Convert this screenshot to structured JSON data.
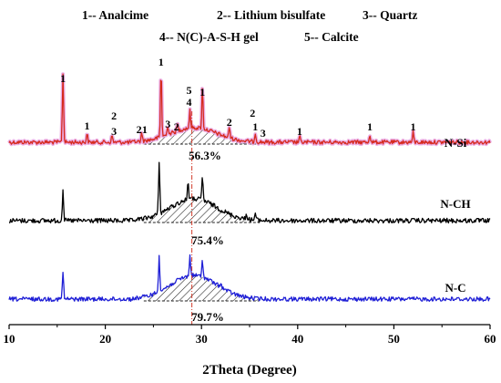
{
  "chart_data": {
    "type": "line",
    "title": "",
    "xlabel": "2Theta (Degree)",
    "ylabel": "",
    "xlim": [
      10,
      60
    ],
    "x_ticks": [
      10,
      20,
      30,
      40,
      50,
      60
    ],
    "legend": [
      "1-- Analcime",
      "2-- Lithium bisulfate",
      "3-- Quartz",
      "4-- N(C)-A-S-H gel",
      "5-- Calcite"
    ],
    "reference_line_x": 29.0,
    "series": [
      {
        "name": "N-Si",
        "color": "#d62a1e",
        "glow": "#e8a0e0",
        "amorphous_hump": {
          "x_start": 24,
          "x_end": 36,
          "percent_label": "56.3%"
        },
        "peaks": [
          {
            "x": 15.6,
            "h": 1.0
          },
          {
            "x": 18.1,
            "h": 0.13
          },
          {
            "x": 20.7,
            "h": 0.1
          },
          {
            "x": 23.8,
            "h": 0.12
          },
          {
            "x": 25.8,
            "h": 1.0
          },
          {
            "x": 26.5,
            "h": 0.14
          },
          {
            "x": 27.5,
            "h": 0.1
          },
          {
            "x": 28.8,
            "h": 0.25
          },
          {
            "x": 30.1,
            "h": 0.6
          },
          {
            "x": 32.9,
            "h": 0.16
          },
          {
            "x": 35.6,
            "h": 0.14
          },
          {
            "x": 40.2,
            "h": 0.08
          },
          {
            "x": 47.5,
            "h": 0.12
          },
          {
            "x": 52.0,
            "h": 0.14
          }
        ],
        "peak_labels": [
          {
            "x": 15.6,
            "text": "1"
          },
          {
            "x": 18.1,
            "text": "1"
          },
          {
            "x": 20.9,
            "text": "2"
          },
          {
            "x": 20.9,
            "text": "3"
          },
          {
            "x": 23.5,
            "text": "2"
          },
          {
            "x": 24.1,
            "text": "1"
          },
          {
            "x": 25.8,
            "text": "1"
          },
          {
            "x": 26.5,
            "text": "3"
          },
          {
            "x": 27.4,
            "text": "2"
          },
          {
            "x": 28.8,
            "text": "5"
          },
          {
            "x": 28.8,
            "text": "4"
          },
          {
            "x": 30.1,
            "text": "1"
          },
          {
            "x": 32.9,
            "text": "2"
          },
          {
            "x": 35.4,
            "text": "2"
          },
          {
            "x": 35.5,
            "text": "1"
          },
          {
            "x": 36.4,
            "text": "3"
          },
          {
            "x": 40.2,
            "text": "1"
          },
          {
            "x": 47.5,
            "text": "1"
          },
          {
            "x": 52.0,
            "text": "1"
          }
        ]
      },
      {
        "name": "N-CH",
        "color": "#000000",
        "amorphous_hump": {
          "x_start": 24,
          "x_end": 36,
          "percent_label": "75.4%"
        },
        "peaks": [
          {
            "x": 15.6,
            "h": 0.6
          },
          {
            "x": 25.6,
            "h": 1.0
          },
          {
            "x": 28.6,
            "h": 0.35
          },
          {
            "x": 30.1,
            "h": 0.45
          },
          {
            "x": 34.7,
            "h": 0.1
          },
          {
            "x": 35.6,
            "h": 0.13
          }
        ]
      },
      {
        "name": "N-C",
        "color": "#1f1fd6",
        "amorphous_hump": {
          "x_start": 24,
          "x_end": 36,
          "percent_label": "79.7%"
        },
        "peaks": [
          {
            "x": 15.6,
            "h": 0.55
          },
          {
            "x": 25.6,
            "h": 0.75
          },
          {
            "x": 28.8,
            "h": 0.4
          },
          {
            "x": 30.1,
            "h": 0.35
          },
          {
            "x": 32.0,
            "h": 0.1
          }
        ]
      }
    ]
  }
}
